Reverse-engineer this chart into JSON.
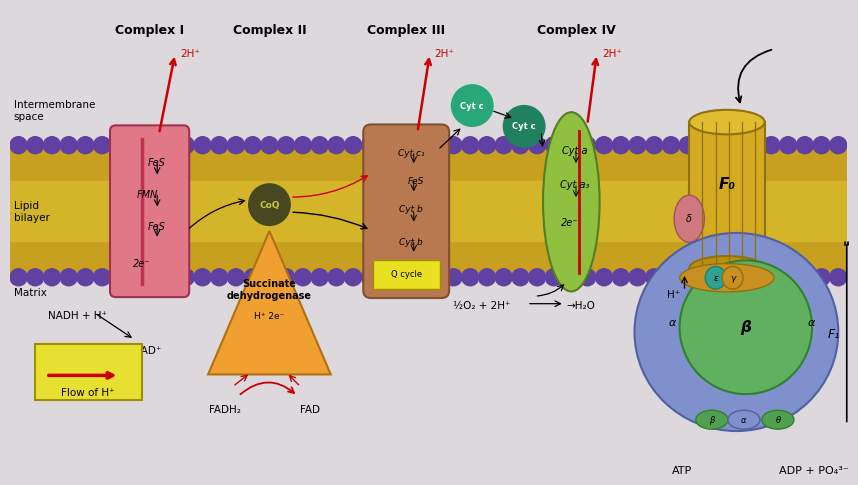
{
  "bg_color": "#ddd8dc",
  "labels": {
    "intermembrane": "Intermembrane\nspace",
    "lipid_bilayer": "Lipid\nbilayer",
    "matrix": "Matrix",
    "nadh": "NADH + H⁺",
    "nad": "NAD⁺",
    "fadh2": "FADH₂",
    "fad": "FAD",
    "succinate_dh": "Succinate\ndehydrogenase",
    "coq": "CoQ",
    "q_cycle": "Q cycle",
    "fmn": "FMN",
    "fes1": "FeS",
    "fes2": "FeS",
    "fes3": "FeS",
    "2eminus_I": "2e⁻",
    "2Hplus_I": "2H⁺",
    "2Hplus_III": "2H⁺",
    "2Hplus_IV": "2H⁺",
    "cyt_c1": "Cyt c₁",
    "cyt_fes": "FeS",
    "cyt_b1": "Cyt b",
    "cyt_b2": "Cyt b",
    "cyt_c_mobile1": "Cyt c",
    "cyt_c_mobile2": "Cyt c",
    "cyt_a": "Cyt a",
    "cyt_a3": "Cyt a₃",
    "2eminus_IV": "2e⁻",
    "half_O2": "½O₂ + 2H⁺",
    "H2O": "→H₂O",
    "Hplus_atp": "H⁺",
    "F0_label": "F₀",
    "F1_label": "F₁",
    "epsilon": "ε",
    "gamma": "γ",
    "delta": "δ",
    "alpha1": "α",
    "alpha2": "α",
    "beta_large": "β",
    "beta_small1": "β",
    "beta_small2": "α",
    "theta": "θ",
    "ATP": "ATP",
    "ADP_PO4": "ADP + PO₄³⁻",
    "flow_H": "Flow of H⁺",
    "H_plus_2eminus": "H⁺ 2e⁻",
    "complex1": "Complex I",
    "complex2": "Complex II",
    "complex3": "Complex III",
    "complex4": "Complex IV"
  },
  "colors": {
    "complex_I": "#e07888",
    "complex_III": "#b87850",
    "complex_IV": "#90c040",
    "complex_II_tri": "#f0a030",
    "coq": "#505820",
    "cyt_c_green": "#20a070",
    "F0_gold": "#d4aa20",
    "F1_blue": "#8090cc",
    "F1_green": "#60b060",
    "stalk_pink": "#d07880",
    "epsilon_teal": "#30a090",
    "gamma_gold": "#c89020",
    "red": "#cc0000",
    "black": "#111111",
    "purple": "#6040a0",
    "mem_yellow": "#c8a020",
    "mem_yellow2": "#d4b428"
  }
}
